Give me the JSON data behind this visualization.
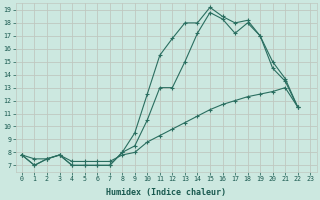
{
  "xlabel": "Humidex (Indice chaleur)",
  "bg_color": "#cce8e0",
  "grid_color": "#c0c8c0",
  "line_color": "#2a6e60",
  "xlim_min": -0.5,
  "xlim_max": 23.5,
  "ylim_min": 6.5,
  "ylim_max": 19.5,
  "x_ticks": [
    0,
    1,
    2,
    3,
    4,
    5,
    6,
    7,
    8,
    9,
    10,
    11,
    12,
    13,
    14,
    15,
    16,
    17,
    18,
    19,
    20,
    21,
    22,
    23
  ],
  "y_ticks": [
    7,
    8,
    9,
    10,
    11,
    12,
    13,
    14,
    15,
    16,
    17,
    18,
    19
  ],
  "series1_x": [
    0,
    1,
    2,
    3,
    4,
    5,
    6,
    7,
    8,
    9,
    10,
    11,
    12,
    13,
    14,
    15,
    16,
    17,
    18,
    19,
    20,
    21,
    22
  ],
  "series1_y": [
    7.8,
    7.0,
    7.5,
    7.8,
    7.0,
    7.0,
    7.0,
    7.0,
    8.0,
    9.5,
    12.5,
    15.5,
    16.8,
    18.0,
    18.0,
    19.2,
    18.5,
    18.0,
    18.2,
    17.0,
    15.0,
    13.7,
    11.5
  ],
  "series2_x": [
    0,
    1,
    2,
    3,
    4,
    5,
    6,
    7,
    8,
    9,
    10,
    11,
    12,
    13,
    14,
    15,
    16,
    17,
    18,
    19,
    20,
    21,
    22
  ],
  "series2_y": [
    7.8,
    7.0,
    7.5,
    7.8,
    7.0,
    7.0,
    7.0,
    7.0,
    8.0,
    8.5,
    10.5,
    13.0,
    13.0,
    15.0,
    17.2,
    18.8,
    18.3,
    17.2,
    18.0,
    17.0,
    14.5,
    13.5,
    11.5
  ],
  "series3_x": [
    0,
    1,
    2,
    3,
    4,
    5,
    6,
    7,
    8,
    9,
    10,
    11,
    12,
    13,
    14,
    15,
    16,
    17,
    18,
    19,
    20,
    21,
    22
  ],
  "series3_y": [
    7.8,
    7.5,
    7.5,
    7.8,
    7.3,
    7.3,
    7.3,
    7.3,
    7.8,
    8.0,
    8.8,
    9.3,
    9.8,
    10.3,
    10.8,
    11.3,
    11.7,
    12.0,
    12.3,
    12.5,
    12.7,
    13.0,
    11.5
  ]
}
